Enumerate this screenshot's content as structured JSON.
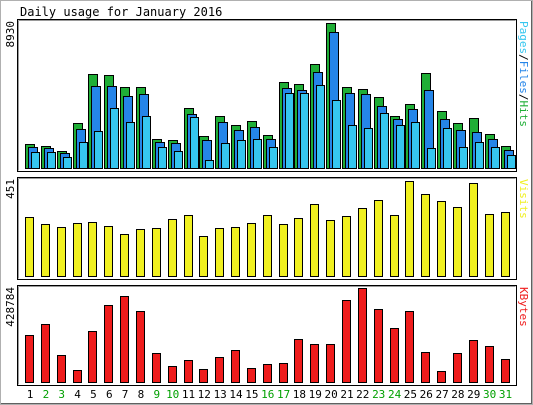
{
  "chart_data": {
    "type": "bar",
    "title": "Daily usage for January 2016",
    "categories": [
      "1",
      "2",
      "3",
      "4",
      "5",
      "6",
      "7",
      "8",
      "9",
      "10",
      "11",
      "12",
      "13",
      "14",
      "15",
      "16",
      "17",
      "18",
      "19",
      "20",
      "21",
      "22",
      "23",
      "24",
      "25",
      "26",
      "27",
      "28",
      "29",
      "30",
      "31"
    ],
    "weekend_days": [
      "2",
      "3",
      "9",
      "10",
      "16",
      "17",
      "23",
      "24",
      "30",
      "31"
    ],
    "panels": [
      {
        "id": "hits",
        "ymax_label": "8930",
        "ymax": 8930,
        "legend": [
          "Pages",
          "/",
          "Files",
          "/",
          "Hits"
        ],
        "series": [
          {
            "name": "Hits",
            "color": "#1fae36",
            "values": [
              1490,
              1370,
              1050,
              2770,
              5750,
              5690,
              4930,
              4930,
              1800,
              1720,
              3690,
              1970,
              3190,
              2640,
              2890,
              1990,
              5280,
              5120,
              6360,
              8860,
              4960,
              4840,
              4330,
              3210,
              3940,
              5840,
              3470,
              2770,
              3080,
              2050,
              1330
            ]
          },
          {
            "name": "Files",
            "color": "#2585e8",
            "values": [
              1300,
              1200,
              900,
              2400,
              5000,
              5000,
              4400,
              4500,
              1600,
              1500,
              3300,
              1700,
              2800,
              2300,
              2500,
              1800,
              4900,
              4800,
              5900,
              8340,
              4600,
              4500,
              3800,
              3000,
              3600,
              4800,
              3000,
              2300,
              2200,
              1800,
              1100
            ]
          },
          {
            "name": "Pages",
            "color": "#36c6ef",
            "values": [
              1000,
              950,
              650,
              1600,
              2250,
              3640,
              2800,
              3150,
              1300,
              1050,
              3110,
              500,
              1500,
              1700,
              1800,
              1300,
              4590,
              4590,
              5060,
              4160,
              2630,
              2460,
              3380,
              2630,
              2810,
              1220,
              2460,
              1300,
              1600,
              1300,
              800
            ]
          }
        ]
      },
      {
        "id": "visits",
        "ymax_label": "451",
        "ymax": 451,
        "legend": [
          "Visits"
        ],
        "series": [
          {
            "name": "Visits",
            "color": "#f0f020",
            "values": [
              279,
              243,
              231,
              249,
              252,
              236,
              199,
              223,
              227,
              268,
              285,
              190,
              224,
              229,
              247,
              288,
              243,
              271,
              337,
              263,
              284,
              318,
              357,
              285,
              445,
              387,
              354,
              323,
              438,
              292,
              300
            ]
          }
        ]
      },
      {
        "id": "kbytes",
        "ymax_label": "428784",
        "ymax": 428784,
        "legend": [
          "KBytes"
        ],
        "series": [
          {
            "name": "KBytes",
            "color": "#ef1c1c",
            "values": [
              214000,
              266000,
              125000,
              56000,
              233000,
              349000,
              394000,
              325000,
              134000,
              71000,
              100000,
              59000,
              112000,
              148000,
              66000,
              84000,
              87000,
              198000,
              173000,
              173000,
              372000,
              428000,
              335000,
              245000,
              322000,
              137000,
              52000,
              134000,
              193000,
              166000,
              107000
            ]
          }
        ]
      }
    ],
    "colors": {
      "weekday_label": "#000000",
      "weekend_label": "#00a000",
      "frame": "#000000"
    }
  }
}
